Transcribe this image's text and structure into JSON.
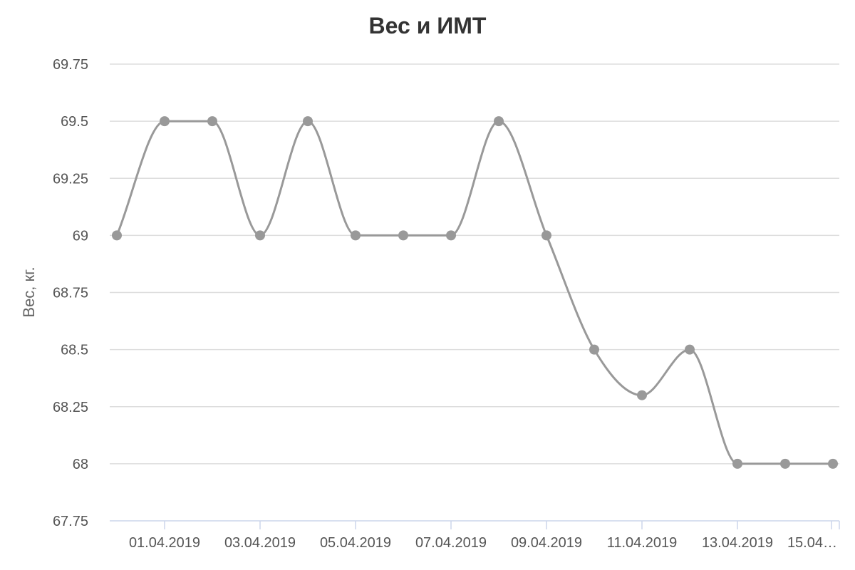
{
  "chart_data": {
    "type": "line",
    "title": "Вес и ИМТ",
    "xlabel": "",
    "ylabel": "Вес, кг.",
    "ylim": [
      67.75,
      69.75
    ],
    "y_ticks": [
      "67.75",
      "68",
      "68.25",
      "68.5",
      "68.75",
      "69",
      "69.25",
      "69.5",
      "69.75"
    ],
    "x_tick_labels": [
      "01.04.2019",
      "03.04.2019",
      "05.04.2019",
      "07.04.2019",
      "09.04.2019",
      "11.04.2019",
      "13.04.2019",
      "15.04…"
    ],
    "x_tick_indices": [
      1,
      3,
      5,
      7,
      9,
      11,
      13,
      15
    ],
    "grid": true,
    "legend": "none",
    "smooth": true,
    "series": [
      {
        "x": [
          "31.03.2019",
          "01.04.2019",
          "02.04.2019",
          "03.04.2019",
          "04.04.2019",
          "05.04.2019",
          "06.04.2019",
          "07.04.2019",
          "08.04.2019",
          "09.04.2019",
          "10.04.2019",
          "11.04.2019",
          "12.04.2019",
          "13.04.2019",
          "14.04.2019",
          "15.04.2019"
        ],
        "values": [
          69.0,
          69.5,
          69.5,
          69.0,
          69.5,
          69.0,
          69.0,
          69.0,
          69.5,
          69.0,
          68.5,
          68.3,
          68.5,
          68.0,
          68.0,
          68.0
        ],
        "color": "#999999"
      }
    ],
    "colors": {
      "grid": "#dddddd",
      "axis": "#ccd6eb",
      "line": "#999999"
    }
  }
}
